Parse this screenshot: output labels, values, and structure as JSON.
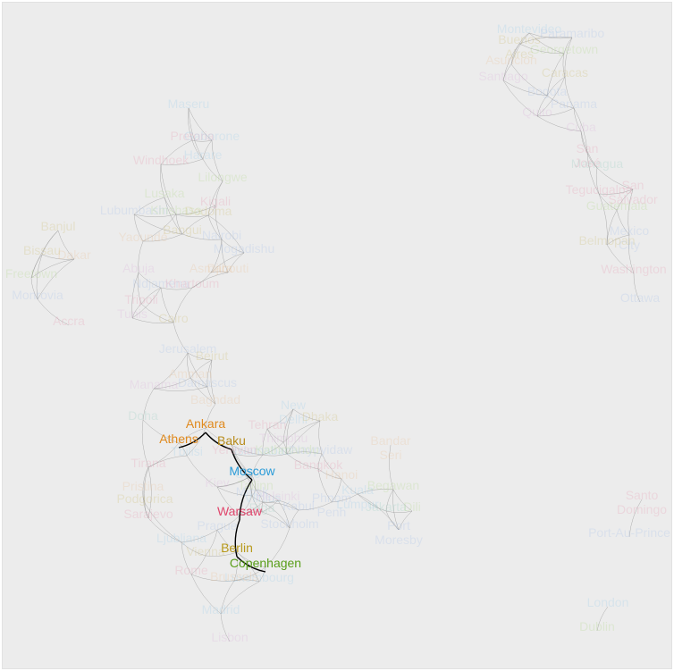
{
  "graph": {
    "highlight_path": [
      "Athens",
      "Ankara",
      "Baku",
      "Moscow",
      "Warsaw",
      "Berlin",
      "Copenhagen"
    ],
    "highlight_colors": {
      "Athens": "#e08a1e",
      "Ankara": "#e08a1e",
      "Baku": "#b88c1c",
      "Moscow": "#2a9bd8",
      "Warsaw": "#e0476d",
      "Berlin": "#b89a1c",
      "Copenhagen": "#5a9e1a"
    },
    "palette": [
      "#8cc8ea",
      "#e78aa6",
      "#c8b45a",
      "#a8d47a",
      "#9ab8e8",
      "#d8a8d8",
      "#e8b888",
      "#88c8b8"
    ],
    "edge_color": "#7a7a7a",
    "path_color": "#000000",
    "nodes": [
      {
        "name": "Maseru",
        "c": 0
      },
      {
        "name": "Pretoria",
        "c": 1
      },
      {
        "name": "Gaborone",
        "c": 0
      },
      {
        "name": "Windhoek",
        "c": 1
      },
      {
        "name": "Harare",
        "c": 0
      },
      {
        "name": "Lusaka",
        "c": 3
      },
      {
        "name": "Lilongwe",
        "c": 3
      },
      {
        "name": "Lubumbashi",
        "c": 4
      },
      {
        "name": "Kinshasa",
        "c": 3
      },
      {
        "name": "Dodoma",
        "c": 2
      },
      {
        "name": "Kigali",
        "c": 1
      },
      {
        "name": "Nairobi",
        "c": 4
      },
      {
        "name": "Mogadishu",
        "c": 4
      },
      {
        "name": "Yaoundé",
        "c": 6
      },
      {
        "name": "Bangui",
        "c": 2
      },
      {
        "name": "Djibouti",
        "c": 6
      },
      {
        "name": "Banjul",
        "c": 2
      },
      {
        "name": "Bissau",
        "c": 2
      },
      {
        "name": "Dakar",
        "c": 6
      },
      {
        "name": "Freetown",
        "c": 3
      },
      {
        "name": "Monrovia",
        "c": 4
      },
      {
        "name": "Abuja",
        "c": 5
      },
      {
        "name": "Ndjamena",
        "c": 4
      },
      {
        "name": "Khartoum",
        "c": 1
      },
      {
        "name": "Asmara",
        "c": 6
      },
      {
        "name": "Tripoli",
        "c": 1
      },
      {
        "name": "Tunis",
        "c": 5
      },
      {
        "name": "Accra",
        "c": 1
      },
      {
        "name": "Cairo",
        "c": 2
      },
      {
        "name": "Jerusalem",
        "c": 4
      },
      {
        "name": "Beirut",
        "c": 2
      },
      {
        "name": "Amman",
        "c": 6
      },
      {
        "name": "Damascus",
        "c": 4
      },
      {
        "name": "Manama",
        "c": 5
      },
      {
        "name": "Doha",
        "c": 7
      },
      {
        "name": "Baghdad",
        "c": 6
      },
      {
        "name": "Tehran",
        "c": 1
      },
      {
        "name": "Kabul",
        "c": 4
      },
      {
        "name": "Islamabad",
        "c": 0
      },
      {
        "name": "New Delhi",
        "c": 0
      },
      {
        "name": "Kathmandu",
        "c": 3
      },
      {
        "name": "Dhaka",
        "c": 2
      },
      {
        "name": "Thimphu",
        "c": 5
      },
      {
        "name": "Naypyidaw",
        "c": 4
      },
      {
        "name": "Bangkok",
        "c": 1
      },
      {
        "name": "Phnom Penh",
        "c": 4
      },
      {
        "name": "Hanoi",
        "c": 6
      },
      {
        "name": "Bandar Seri",
        "c": 6
      },
      {
        "name": "Begawan",
        "c": 3
      },
      {
        "name": "Kuala Lumpur",
        "c": 0
      },
      {
        "name": "Jakarta",
        "c": 7
      },
      {
        "name": "Dili",
        "c": 3
      },
      {
        "name": "Port Moresby",
        "c": 4
      },
      {
        "name": "Tbilisi",
        "c": 0
      },
      {
        "name": "Yerevan",
        "c": 1
      },
      {
        "name": "Tirana",
        "c": 1
      },
      {
        "name": "Pristina",
        "c": 6
      },
      {
        "name": "Podgorica",
        "c": 2
      },
      {
        "name": "Sarajevo",
        "c": 1
      },
      {
        "name": "Ljubljana",
        "c": 0
      },
      {
        "name": "Kiev",
        "c": 5
      },
      {
        "name": "Minsk",
        "c": 4
      },
      {
        "name": "Vilnius",
        "c": 0
      },
      {
        "name": "Riga",
        "c": 7
      },
      {
        "name": "Tallinn",
        "c": 3
      },
      {
        "name": "Helsinki",
        "c": 5
      },
      {
        "name": "Stockholm",
        "c": 4
      },
      {
        "name": "Oslo",
        "c": 0
      },
      {
        "name": "Rome",
        "c": 1
      },
      {
        "name": "Vienna",
        "c": 2
      },
      {
        "name": "Prague",
        "c": 4
      },
      {
        "name": "Luxembourg",
        "c": 0
      },
      {
        "name": "Brussels",
        "c": 6
      },
      {
        "name": "Madrid",
        "c": 0
      },
      {
        "name": "Lisbon",
        "c": 5
      },
      {
        "name": "Montevideo",
        "c": 0
      },
      {
        "name": "Paramaribo",
        "c": 4
      },
      {
        "name": "Buenos Aires",
        "c": 2
      },
      {
        "name": "Georgetown",
        "c": 3
      },
      {
        "name": "Asunción",
        "c": 6
      },
      {
        "name": "Santiago",
        "c": 5
      },
      {
        "name": "Caracas",
        "c": 2
      },
      {
        "name": "Bogota",
        "c": 4
      },
      {
        "name": "Quito",
        "c": 5
      },
      {
        "name": "Panama",
        "c": 4
      },
      {
        "name": "Cuba",
        "c": 5
      },
      {
        "name": "San José",
        "c": 1
      },
      {
        "name": "Managua",
        "c": 7
      },
      {
        "name": "Tegucigalpa",
        "c": 1
      },
      {
        "name": "San Salvador",
        "c": 1
      },
      {
        "name": "Guatemala",
        "c": 3
      },
      {
        "name": "Mexico City",
        "c": 4
      },
      {
        "name": "Belmopan",
        "c": 2
      },
      {
        "name": "Washington",
        "c": 1
      },
      {
        "name": "Ottawa",
        "c": 4
      },
      {
        "name": "Santo Domingo",
        "c": 1
      },
      {
        "name": "Port-Au-Prince",
        "c": 4
      },
      {
        "name": "London",
        "c": 0
      },
      {
        "name": "Dublin",
        "c": 3
      },
      {
        "name": "Ankara",
        "c": 6
      },
      {
        "name": "Athens",
        "c": 6
      },
      {
        "name": "Baku",
        "c": 6
      },
      {
        "name": "Moscow",
        "c": 0
      },
      {
        "name": "Warsaw",
        "c": 1
      },
      {
        "name": "Berlin",
        "c": 2
      },
      {
        "name": "Copenhagen",
        "c": 3
      }
    ]
  }
}
